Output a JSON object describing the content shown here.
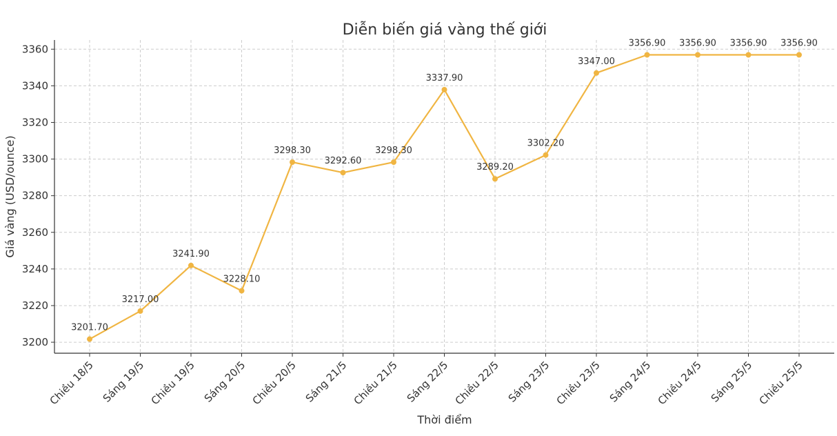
{
  "chart_data": {
    "type": "line",
    "title": "Diễn biến giá vàng thế giới",
    "xlabel": "Thời điểm",
    "ylabel": "Giá vàng (USD/ounce)",
    "categories": [
      "Chiều 18/5",
      "Sáng 19/5",
      "Chiều 19/5",
      "Sáng 20/5",
      "Chiều 20/5",
      "Sáng 21/5",
      "Chiều 21/5",
      "Sáng 22/5",
      "Chiều 22/5",
      "Sáng 23/5",
      "Chiều 23/5",
      "Sáng 24/5",
      "Chiều 24/5",
      "Sáng 25/5",
      "Chiều 25/5"
    ],
    "values": [
      3201.7,
      3217.0,
      3241.9,
      3228.1,
      3298.3,
      3292.6,
      3298.3,
      3337.9,
      3289.2,
      3302.2,
      3347.0,
      3356.9,
      3356.9,
      3356.9,
      3356.9
    ],
    "value_labels": [
      "3201.70",
      "3217.00",
      "3241.90",
      "3228.10",
      "3298.30",
      "3292.60",
      "3298.30",
      "3337.90",
      "3289.20",
      "3302.20",
      "3347.00",
      "3356.90",
      "3356.90",
      "3356.90",
      "3356.90"
    ],
    "yticks": [
      3200,
      3220,
      3240,
      3260,
      3280,
      3300,
      3320,
      3340,
      3360
    ],
    "ylim": [
      3194,
      3365
    ],
    "grid": true,
    "line_color": "#F0B542"
  }
}
